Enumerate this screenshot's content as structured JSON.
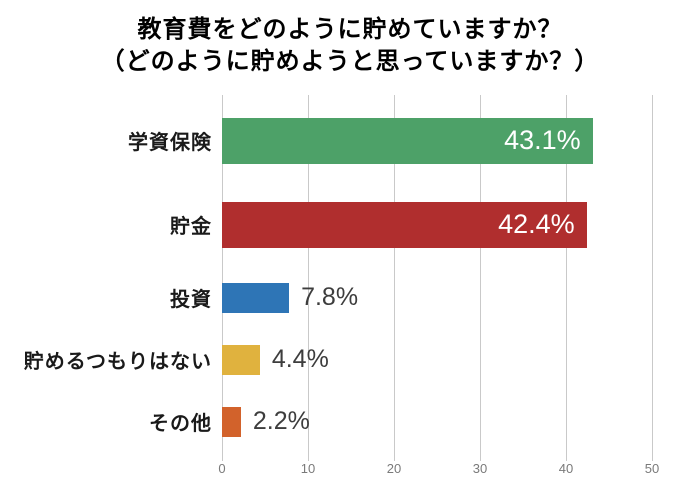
{
  "title": {
    "line1": "教育費をどのように貯めていますか？",
    "line2": "（どのように貯めようと思っていますか？）"
  },
  "chart_data": {
    "type": "bar",
    "orientation": "horizontal",
    "title": "教育費をどのように貯めていますか？（どのように貯めようと思っていますか？）",
    "categories": [
      "学資保険",
      "貯金",
      "投資",
      "貯めるつもりはない",
      "その他"
    ],
    "values": [
      43.1,
      42.4,
      7.8,
      4.4,
      2.2
    ],
    "value_labels": [
      "43.1%",
      "42.4%",
      "7.8%",
      "4.4%",
      "2.2%"
    ],
    "bar_colors": [
      "#4da168",
      "#b02e2e",
      "#2e75b6",
      "#e0b23e",
      "#d2622b"
    ],
    "inside_label_threshold": 20,
    "xlim": [
      0,
      50
    ],
    "x_ticks": [
      0,
      10,
      20,
      30,
      40,
      50
    ],
    "grid": true,
    "gridline_color": "#c9c9c9",
    "legend": "none",
    "xlabel": "",
    "ylabel": ""
  }
}
